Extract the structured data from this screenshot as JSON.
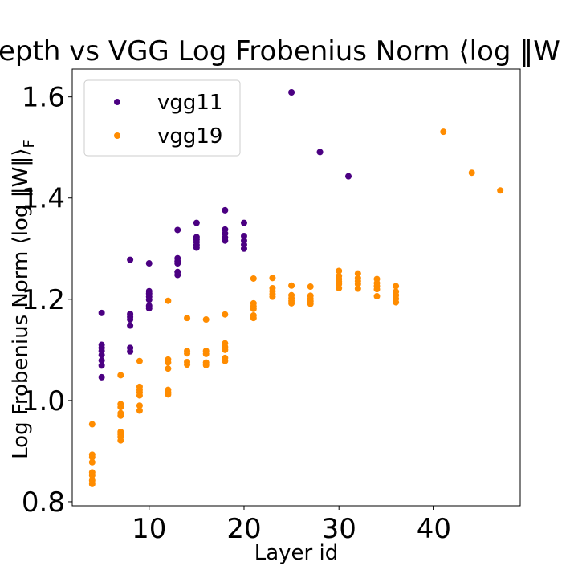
{
  "chart_data": {
    "type": "scatter",
    "title": "Depth vs VGG Log Frobenius Norm ⟨log ‖W‖_F⟩",
    "title_visible": "epth vs VGG Log Frobenius Norm ⟨log ‖W",
    "xlabel": "Layer id",
    "ylabel": "Log Frobenius Norm ⟨log ‖W‖⟩",
    "ylabel_subscript": "F",
    "xlim": [
      1.9,
      49.1
    ],
    "ylim": [
      0.792,
      1.655
    ],
    "xticks": [
      10,
      20,
      30,
      40
    ],
    "yticks": [
      0.8,
      1.0,
      1.2,
      1.4,
      1.6
    ],
    "ytick_labels": [
      "0.8",
      "1.0",
      "1.2",
      "1.4",
      "1.6"
    ],
    "grid": false,
    "legend_position": "top-left",
    "series": [
      {
        "name": "vgg11",
        "color": "#4b0082",
        "points": [
          [
            5,
            1.173
          ],
          [
            5,
            1.11
          ],
          [
            5,
            1.104
          ],
          [
            5,
            1.098
          ],
          [
            5,
            1.09
          ],
          [
            5,
            1.079
          ],
          [
            5,
            1.069
          ],
          [
            5,
            1.046
          ],
          [
            8,
            1.278
          ],
          [
            8,
            1.171
          ],
          [
            8,
            1.165
          ],
          [
            8,
            1.16
          ],
          [
            8,
            1.148
          ],
          [
            8,
            1.104
          ],
          [
            8,
            1.097
          ],
          [
            10,
            1.271
          ],
          [
            10,
            1.216
          ],
          [
            10,
            1.211
          ],
          [
            10,
            1.205
          ],
          [
            10,
            1.199
          ],
          [
            10,
            1.187
          ],
          [
            10,
            1.182
          ],
          [
            13,
            1.337
          ],
          [
            13,
            1.281
          ],
          [
            13,
            1.275
          ],
          [
            13,
            1.271
          ],
          [
            13,
            1.254
          ],
          [
            13,
            1.248
          ],
          [
            15,
            1.351
          ],
          [
            15,
            1.323
          ],
          [
            15,
            1.318
          ],
          [
            15,
            1.313
          ],
          [
            15,
            1.307
          ],
          [
            15,
            1.302
          ],
          [
            18,
            1.376
          ],
          [
            18,
            1.338
          ],
          [
            18,
            1.33
          ],
          [
            18,
            1.322
          ],
          [
            18,
            1.316
          ],
          [
            20,
            1.351
          ],
          [
            20,
            1.325
          ],
          [
            20,
            1.316
          ],
          [
            20,
            1.308
          ],
          [
            20,
            1.3
          ],
          [
            25,
            1.609
          ],
          [
            28,
            1.491
          ],
          [
            31,
            1.443
          ]
        ]
      },
      {
        "name": "vgg19",
        "color": "#ff8c00",
        "points": [
          [
            4,
            0.953
          ],
          [
            4,
            0.893
          ],
          [
            4,
            0.888
          ],
          [
            4,
            0.878
          ],
          [
            4,
            0.858
          ],
          [
            4,
            0.852
          ],
          [
            4,
            0.842
          ],
          [
            4,
            0.835
          ],
          [
            7,
            1.05
          ],
          [
            7,
            0.993
          ],
          [
            7,
            0.987
          ],
          [
            7,
            0.975
          ],
          [
            7,
            0.97
          ],
          [
            7,
            0.938
          ],
          [
            7,
            0.933
          ],
          [
            7,
            0.928
          ],
          [
            7,
            0.921
          ],
          [
            9,
            1.078
          ],
          [
            9,
            1.027
          ],
          [
            9,
            1.021
          ],
          [
            9,
            1.016
          ],
          [
            9,
            1.01
          ],
          [
            9,
            0.99
          ],
          [
            9,
            0.98
          ],
          [
            12,
            1.197
          ],
          [
            12,
            1.081
          ],
          [
            12,
            1.075
          ],
          [
            12,
            1.063
          ],
          [
            12,
            1.021
          ],
          [
            12,
            1.016
          ],
          [
            12,
            1.012
          ],
          [
            14,
            1.163
          ],
          [
            14,
            1.098
          ],
          [
            14,
            1.093
          ],
          [
            14,
            1.076
          ],
          [
            14,
            1.071
          ],
          [
            16,
            1.16
          ],
          [
            16,
            1.098
          ],
          [
            16,
            1.092
          ],
          [
            16,
            1.075
          ],
          [
            16,
            1.07
          ],
          [
            18,
            1.17
          ],
          [
            18,
            1.113
          ],
          [
            18,
            1.106
          ],
          [
            18,
            1.1
          ],
          [
            18,
            1.084
          ],
          [
            18,
            1.078
          ],
          [
            21,
            1.241
          ],
          [
            21,
            1.192
          ],
          [
            21,
            1.186
          ],
          [
            21,
            1.181
          ],
          [
            21,
            1.168
          ],
          [
            21,
            1.163
          ],
          [
            23,
            1.242
          ],
          [
            23,
            1.222
          ],
          [
            23,
            1.216
          ],
          [
            23,
            1.21
          ],
          [
            23,
            1.205
          ],
          [
            25,
            1.227
          ],
          [
            25,
            1.208
          ],
          [
            25,
            1.202
          ],
          [
            25,
            1.197
          ],
          [
            25,
            1.192
          ],
          [
            27,
            1.225
          ],
          [
            27,
            1.207
          ],
          [
            27,
            1.201
          ],
          [
            27,
            1.196
          ],
          [
            27,
            1.191
          ],
          [
            30,
            1.256
          ],
          [
            30,
            1.246
          ],
          [
            30,
            1.24
          ],
          [
            30,
            1.235
          ],
          [
            30,
            1.23
          ],
          [
            30,
            1.222
          ],
          [
            32,
            1.251
          ],
          [
            32,
            1.242
          ],
          [
            32,
            1.236
          ],
          [
            32,
            1.23
          ],
          [
            32,
            1.221
          ],
          [
            34,
            1.24
          ],
          [
            34,
            1.232
          ],
          [
            34,
            1.226
          ],
          [
            34,
            1.22
          ],
          [
            34,
            1.206
          ],
          [
            36,
            1.226
          ],
          [
            36,
            1.215
          ],
          [
            36,
            1.208
          ],
          [
            36,
            1.201
          ],
          [
            36,
            1.194
          ],
          [
            41,
            1.531
          ],
          [
            44,
            1.45
          ],
          [
            47,
            1.415
          ]
        ]
      }
    ]
  }
}
